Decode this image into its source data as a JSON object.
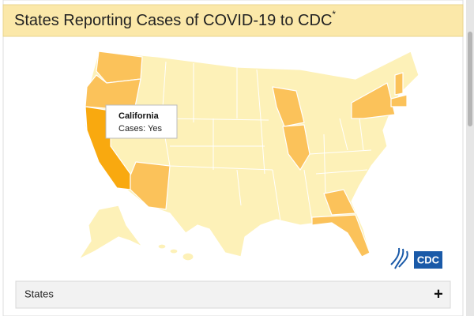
{
  "header": {
    "title": "States Reporting Cases of COVID-19 to CDC",
    "title_mark": "*"
  },
  "tooltip": {
    "state": "California",
    "cases": "Cases: Yes"
  },
  "logo": {
    "text": "CDC"
  },
  "accordion": {
    "label": "States",
    "toggle": "+"
  }
}
